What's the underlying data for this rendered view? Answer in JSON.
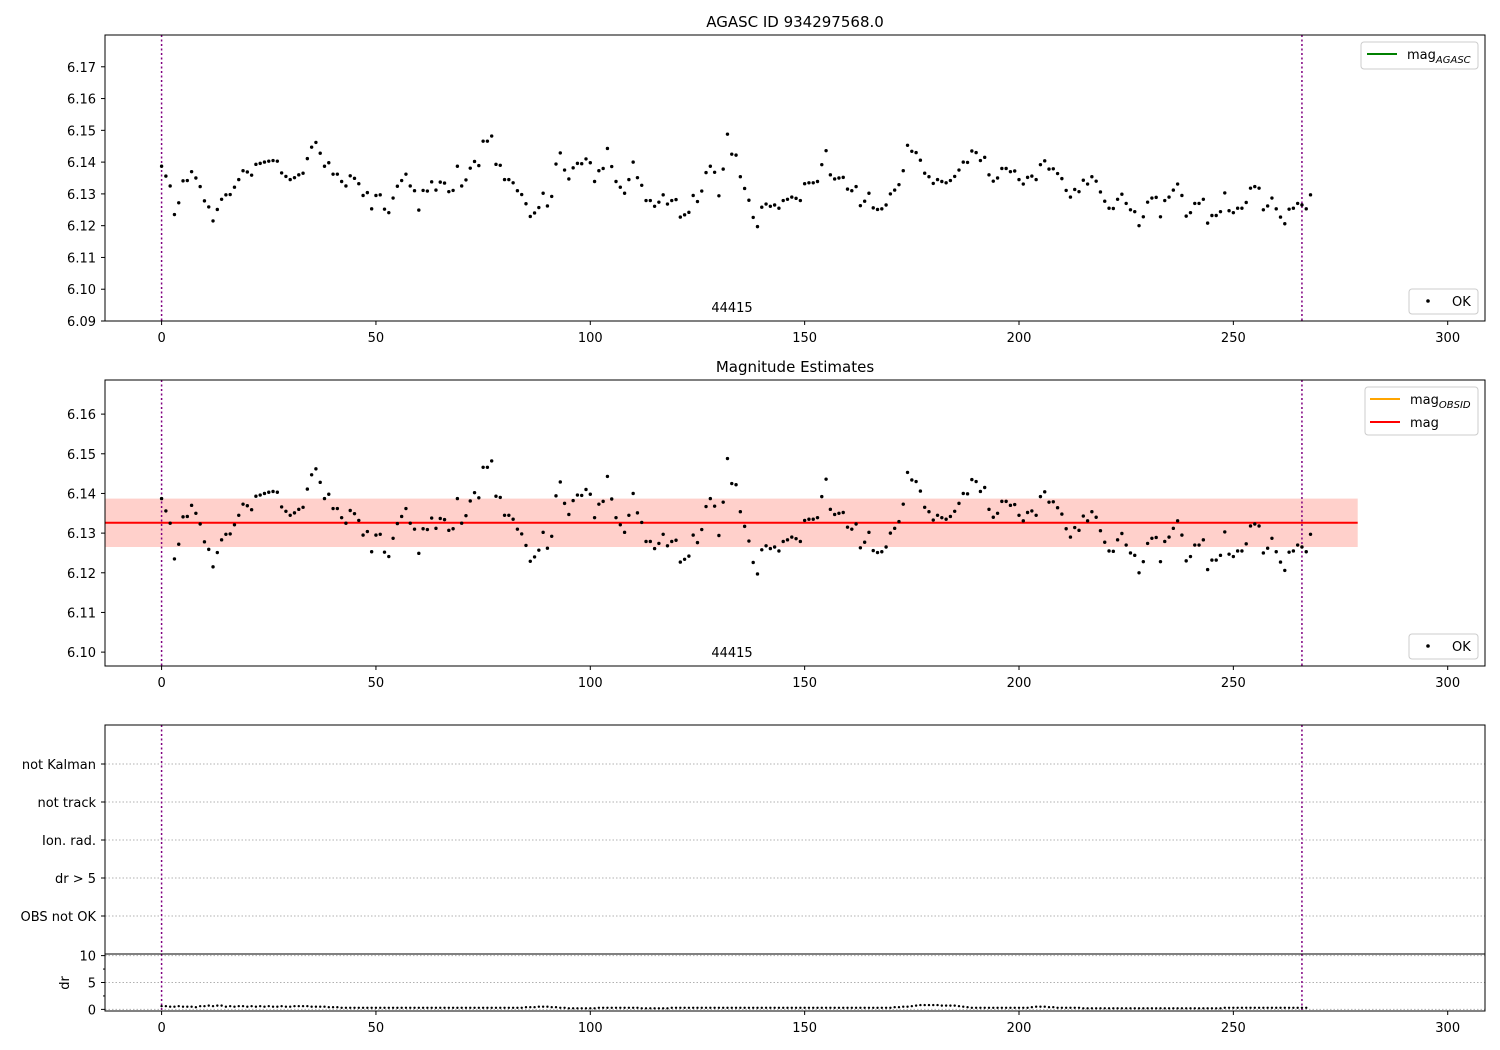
{
  "chart_data": [
    {
      "type": "scatter",
      "title": "AGASC ID 934297568.0",
      "xlabel": "",
      "ylabel": "",
      "xlim": [
        -13.2,
        308.7
      ],
      "ylim": [
        6.09,
        6.18
      ],
      "xticks": [
        "0",
        "50",
        "100",
        "150",
        "200",
        "250",
        "300"
      ],
      "yticks": [
        "6.09",
        "6.10",
        "6.11",
        "6.12",
        "6.13",
        "6.14",
        "6.15",
        "6.16",
        "6.17"
      ],
      "grid": false,
      "obs_boundaries": [
        0,
        266
      ],
      "annotations": [
        {
          "text": "44415",
          "x": 131,
          "y": 6.0915
        }
      ],
      "series": [
        {
          "name": "OK",
          "marker": "dot",
          "color": "#000000",
          "x_start": 0,
          "values": [
            6.1387,
            6.1356,
            6.1325,
            6.1235,
            6.1272,
            6.1341,
            6.1342,
            6.137,
            6.135,
            6.1323,
            6.1278,
            6.1259,
            6.1215,
            6.1251,
            6.1283,
            6.1297,
            6.1298,
            6.1321,
            6.1345,
            6.1373,
            6.1369,
            6.1359,
            6.1393,
            6.1396,
            6.14,
            6.1403,
            6.1405,
            6.1403,
            6.1366,
            6.1355,
            6.1345,
            6.1351,
            6.136,
            6.1365,
            6.1411,
            6.1447,
            6.1462,
            6.1428,
            6.1387,
            6.1398,
            6.1362,
            6.1362,
            6.1339,
            6.1325,
            6.1357,
            6.1349,
            6.1332,
            6.1295,
            6.1304,
            6.1253,
            6.1295,
            6.1297,
            6.1252,
            6.1241,
            6.1287,
            6.1324,
            6.1342,
            6.1362,
            6.1325,
            6.131,
            6.1249,
            6.1311,
            6.1309,
            6.1338,
            6.1312,
            6.1337,
            6.1334,
            6.1307,
            6.1311,
            6.1387,
            6.1325,
            6.1344,
            6.1381,
            6.1402,
            6.1389,
            6.1466,
            6.1466,
            6.1482,
            6.1393,
            6.139,
            6.1345,
            6.1345,
            6.1335,
            6.131,
            6.1298,
            6.1269,
            6.1229,
            6.124,
            6.1257,
            6.1302,
            6.1262,
            6.1292,
            6.1394,
            6.1429,
            6.1375,
            6.1347,
            6.1382,
            6.1396,
            6.1395,
            6.141,
            6.1398,
            6.1339,
            6.1373,
            6.138,
            6.1443,
            6.1386,
            6.1339,
            6.1321,
            6.1302,
            6.1345,
            6.14,
            6.1351,
            6.1327,
            6.1279,
            6.1279,
            6.1261,
            6.1274,
            6.1297,
            6.1268,
            6.1279,
            6.1282,
            6.1227,
            6.1234,
            6.1242,
            6.1295,
            6.1276,
            6.1309,
            6.1367,
            6.1387,
            6.1368,
            6.1294,
            6.1378,
            6.1488,
            6.1425,
            6.1422,
            6.1354,
            6.1317,
            6.128,
            6.1226,
            6.1197,
            6.1258,
            6.1268,
            6.1261,
            6.1265,
            6.1255,
            6.1279,
            6.1283,
            6.129,
            6.1286,
            6.1279,
            6.1332,
            6.1335,
            6.1335,
            6.1339,
            6.1392,
            6.1436,
            6.136,
            6.1347,
            6.135,
            6.1352,
            6.1315,
            6.131,
            6.1323,
            6.1263,
            6.1277,
            6.1302,
            6.1256,
            6.1251,
            6.1253,
            6.1265,
            6.13,
            6.1312,
            6.1329,
            6.1373,
            6.1453,
            6.1434,
            6.143,
            6.1406,
            6.1365,
            6.1354,
            6.1333,
            6.1345,
            6.1339,
            6.1335,
            6.1342,
            6.1355,
            6.1375,
            6.14,
            6.1399,
            6.1435,
            6.143,
            6.1405,
            6.1415,
            6.136,
            6.134,
            6.135,
            6.138,
            6.138,
            6.137,
            6.1372,
            6.1345,
            6.1331,
            6.1352,
            6.1356,
            6.1345,
            6.1392,
            6.1404,
            6.1378,
            6.1379,
            6.1364,
            6.1348,
            6.1311,
            6.129,
            6.1314,
            6.1307,
            6.1343,
            6.1331,
            6.1354,
            6.134,
            6.1306,
            6.1277,
            6.1255,
            6.1254,
            6.1283,
            6.1299,
            6.127,
            6.125,
            6.1244,
            6.12,
            6.1228,
            6.1274,
            6.1287,
            6.1289,
            6.1228,
            6.1279,
            6.129,
            6.1312,
            6.1331,
            6.1295,
            6.123,
            6.1241,
            6.127,
            6.127,
            6.1283,
            6.1208,
            6.1232,
            6.1232,
            6.1244,
            6.1303,
            6.1247,
            6.1241,
            6.1255,
            6.1255,
            6.1273,
            6.1318,
            6.1323,
            6.1318,
            6.125,
            6.1262,
            6.1287,
            6.1253,
            6.1227,
            6.1206,
            6.1252,
            6.1255,
            6.127,
            6.1265,
            6.1253,
            6.1297
          ]
        }
      ],
      "lines": [
        {
          "name": "mag_AGASC",
          "color": "#008000"
        }
      ],
      "legends": [
        {
          "placement": "upper right",
          "entries": [
            {
              "label": "mag",
              "sub": "AGASC",
              "color": "#008000",
              "kind": "line"
            }
          ]
        },
        {
          "placement": "lower right",
          "entries": [
            {
              "label": "OK",
              "kind": "dot"
            }
          ]
        }
      ]
    },
    {
      "type": "scatter",
      "title": "Magnitude Estimates",
      "xlabel": "",
      "ylabel": "",
      "xlim": [
        -13.2,
        308.7
      ],
      "ylim": [
        6.0965,
        6.1686
      ],
      "xticks": [
        "0",
        "50",
        "100",
        "150",
        "200",
        "250",
        "300"
      ],
      "yticks": [
        "6.10",
        "6.11",
        "6.12",
        "6.13",
        "6.14",
        "6.15",
        "6.16"
      ],
      "grid": false,
      "obs_boundaries": [
        0,
        266
      ],
      "annotations": [
        {
          "text": "44415",
          "x": 131,
          "y": 6.0969
        }
      ],
      "series": [
        {
          "name": "OK",
          "marker": "dot",
          "color": "#000000",
          "same_as_panel": 0
        }
      ],
      "lines": [
        {
          "name": "mag",
          "color": "#ff0000",
          "y": 6.1326,
          "x_range": [
            -13.2,
            279
          ]
        },
        {
          "name": "mag_OBSID",
          "color": "#ffa500"
        }
      ],
      "bands": [
        {
          "name": "mag_OBSID band",
          "color": "#ffa07a",
          "alpha": 0.35,
          "y_range": [
            6.1265,
            6.1387
          ],
          "x_range": [
            -13.2,
            279
          ]
        },
        {
          "name": "mag band",
          "color": "#ffb6c1",
          "alpha": 0.35,
          "y_range": [
            6.1265,
            6.1387
          ],
          "x_range": [
            -13.2,
            279
          ]
        }
      ],
      "legends": [
        {
          "placement": "upper right",
          "entries": [
            {
              "label": "mag",
              "sub": "OBSID",
              "color": "#ffa500",
              "kind": "line"
            },
            {
              "label": "mag",
              "sub": "",
              "color": "#ff0000",
              "kind": "line"
            }
          ]
        },
        {
          "placement": "lower right",
          "entries": [
            {
              "label": "OK",
              "kind": "dot"
            }
          ]
        }
      ]
    },
    {
      "type": "scatter",
      "title": "",
      "xlabel": "",
      "ylabel": "",
      "xlim": [
        -13.2,
        308.7
      ],
      "categories": [
        "not Kalman",
        "not track",
        "Ion. rad.",
        "dr > 5",
        "OBS not OK"
      ],
      "grid": true,
      "obs_boundaries": [
        0,
        266
      ],
      "series": []
    },
    {
      "type": "scatter",
      "title": "",
      "xlabel": "",
      "ylabel": "dr",
      "xlim": [
        -13.2,
        308.7
      ],
      "ylim": [
        -0.3,
        10.3
      ],
      "xticks": [
        "0",
        "50",
        "100",
        "150",
        "200",
        "250",
        "300"
      ],
      "yticks": [
        "0",
        "5",
        "10"
      ],
      "grid": true,
      "obs_boundaries": [
        0,
        266
      ],
      "series": [
        {
          "name": "dr",
          "marker": "dot",
          "color": "#000000",
          "x_start": 0,
          "values": [
            0.6,
            0.6,
            0.5,
            0.5,
            0.6,
            0.5,
            0.5,
            0.5,
            0.4,
            0.6,
            0.6,
            0.7,
            0.6,
            0.7,
            0.7,
            0.5,
            0.6,
            0.5,
            0.6,
            0.6,
            0.5,
            0.6,
            0.5,
            0.6,
            0.5,
            0.6,
            0.5,
            0.5,
            0.6,
            0.5,
            0.5,
            0.6,
            0.6,
            0.6,
            0.6,
            0.5,
            0.5,
            0.5,
            0.5,
            0.4,
            0.4,
            0.4,
            0.3,
            0.3,
            0.3,
            0.3,
            0.3,
            0.3,
            0.3,
            0.3,
            0.3,
            0.3,
            0.3,
            0.3,
            0.3,
            0.3,
            0.3,
            0.3,
            0.3,
            0.3,
            0.3,
            0.3,
            0.3,
            0.3,
            0.3,
            0.3,
            0.3,
            0.3,
            0.3,
            0.3,
            0.3,
            0.3,
            0.3,
            0.3,
            0.3,
            0.3,
            0.3,
            0.3,
            0.3,
            0.3,
            0.3,
            0.3,
            0.3,
            0.3,
            0.3,
            0.4,
            0.4,
            0.4,
            0.5,
            0.5,
            0.5,
            0.4,
            0.4,
            0.3,
            0.3,
            0.2,
            0.2,
            0.2,
            0.2,
            0.2,
            0.2,
            0.2,
            0.3,
            0.3,
            0.3,
            0.3,
            0.3,
            0.3,
            0.3,
            0.3,
            0.3,
            0.3,
            0.2,
            0.2,
            0.2,
            0.2,
            0.2,
            0.2,
            0.2,
            0.3,
            0.3,
            0.3,
            0.3,
            0.3,
            0.3,
            0.3,
            0.3,
            0.3,
            0.3,
            0.3,
            0.3,
            0.3,
            0.3,
            0.3,
            0.3,
            0.3,
            0.3,
            0.3,
            0.3,
            0.3,
            0.3,
            0.3,
            0.3,
            0.3,
            0.3,
            0.3,
            0.3,
            0.3,
            0.3,
            0.3,
            0.3,
            0.3,
            0.3,
            0.3,
            0.3,
            0.3,
            0.3,
            0.3,
            0.3,
            0.3,
            0.3,
            0.3,
            0.3,
            0.3,
            0.3,
            0.3,
            0.3,
            0.3,
            0.3,
            0.3,
            0.3,
            0.4,
            0.4,
            0.5,
            0.5,
            0.6,
            0.7,
            0.8,
            0.8,
            0.8,
            0.8,
            0.8,
            0.7,
            0.7,
            0.7,
            0.7,
            0.6,
            0.5,
            0.4,
            0.3,
            0.3,
            0.3,
            0.3,
            0.3,
            0.3,
            0.3,
            0.3,
            0.3,
            0.3,
            0.3,
            0.3,
            0.3,
            0.3,
            0.4,
            0.5,
            0.5,
            0.5,
            0.4,
            0.4,
            0.3,
            0.3,
            0.3,
            0.3,
            0.3,
            0.3,
            0.2,
            0.2,
            0.2,
            0.2,
            0.2,
            0.2,
            0.2,
            0.2,
            0.2,
            0.2,
            0.2,
            0.2,
            0.2,
            0.2,
            0.2,
            0.2,
            0.2,
            0.2,
            0.2,
            0.2,
            0.2,
            0.2,
            0.2,
            0.2,
            0.2,
            0.2,
            0.2,
            0.2,
            0.2,
            0.2,
            0.2,
            0.2,
            0.2,
            0.3,
            0.3,
            0.3,
            0.3,
            0.3,
            0.3,
            0.3,
            0.3,
            0.3,
            0.3,
            0.3,
            0.3,
            0.3,
            0.3,
            0.3,
            0.3,
            0.3,
            0.3,
            0.3,
            0.3
          ]
        }
      ]
    }
  ]
}
